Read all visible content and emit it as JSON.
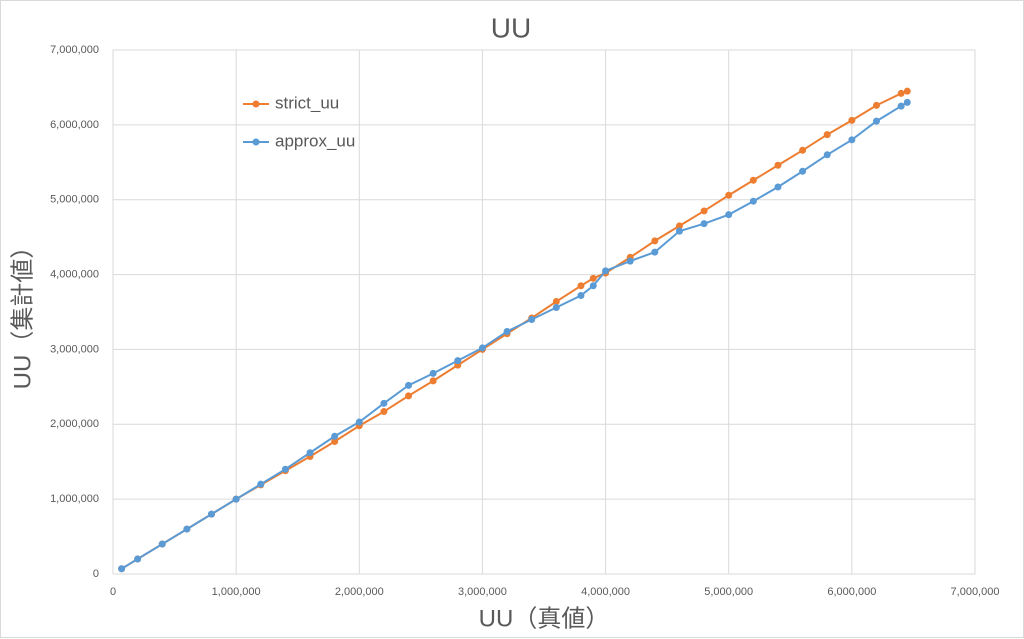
{
  "chart_data": {
    "type": "scatter",
    "title": "UU",
    "x_label": "UU（真値）",
    "y_label": "UU（集計値）",
    "x": [
      70000,
      200000,
      400000,
      600000,
      800000,
      1000000,
      1200000,
      1400000,
      1600000,
      1800000,
      2000000,
      2200000,
      2400000,
      2600000,
      2800000,
      3000000,
      3200000,
      3400000,
      3600000,
      3800000,
      3900000,
      4000000,
      4200000,
      4400000,
      4600000,
      4800000,
      5000000,
      5200000,
      5400000,
      5600000,
      5800000,
      6000000,
      6200000,
      6400000,
      6450000
    ],
    "series": [
      {
        "name": "strict_uu",
        "color": "#ed7d31",
        "values": [
          70000,
          200000,
          400000,
          600000,
          800000,
          1000000,
          1190000,
          1380000,
          1570000,
          1770000,
          1980000,
          2170000,
          2380000,
          2580000,
          2790000,
          3000000,
          3210000,
          3420000,
          3640000,
          3850000,
          3950000,
          4020000,
          4230000,
          4450000,
          4650000,
          4850000,
          5060000,
          5260000,
          5460000,
          5660000,
          5870000,
          6060000,
          6260000,
          6420000,
          6450000
        ]
      },
      {
        "name": "approx_uu",
        "color": "#5b9bd5",
        "values": [
          70000,
          200000,
          400000,
          600000,
          800000,
          1000000,
          1200000,
          1400000,
          1620000,
          1840000,
          2030000,
          2280000,
          2520000,
          2680000,
          2850000,
          3020000,
          3240000,
          3400000,
          3560000,
          3720000,
          3850000,
          4050000,
          4180000,
          4300000,
          4580000,
          4680000,
          4800000,
          4980000,
          5170000,
          5380000,
          5600000,
          5800000,
          6050000,
          6250000,
          6300000
        ]
      }
    ],
    "xlim": [
      0,
      7000000
    ],
    "ylim": [
      0,
      7000000
    ],
    "xticks": [
      0,
      {
        "value": 1000000,
        "label": "1,000,000"
      },
      {
        "value": 2000000,
        "label": "2,000,000"
      },
      {
        "value": 3000000,
        "label": "3,000,000"
      },
      {
        "value": 4000000,
        "label": "4,000,000"
      },
      {
        "value": 5000000,
        "label": "5,000,000"
      },
      {
        "value": 6000000,
        "label": "6,000,000"
      },
      {
        "value": 7000000,
        "label": "7,000,000"
      }
    ],
    "yticks": [
      0,
      {
        "value": 1000000,
        "label": "1,000,000"
      },
      {
        "value": 2000000,
        "label": "2,000,000"
      },
      {
        "value": 3000000,
        "label": "3,000,000"
      },
      {
        "value": 4000000,
        "label": "4,000,000"
      },
      {
        "value": 5000000,
        "label": "5,000,000"
      },
      {
        "value": 6000000,
        "label": "6,000,000"
      },
      {
        "value": 7000000,
        "label": "7,000,000"
      }
    ],
    "grid": true,
    "legend": "upper left"
  }
}
